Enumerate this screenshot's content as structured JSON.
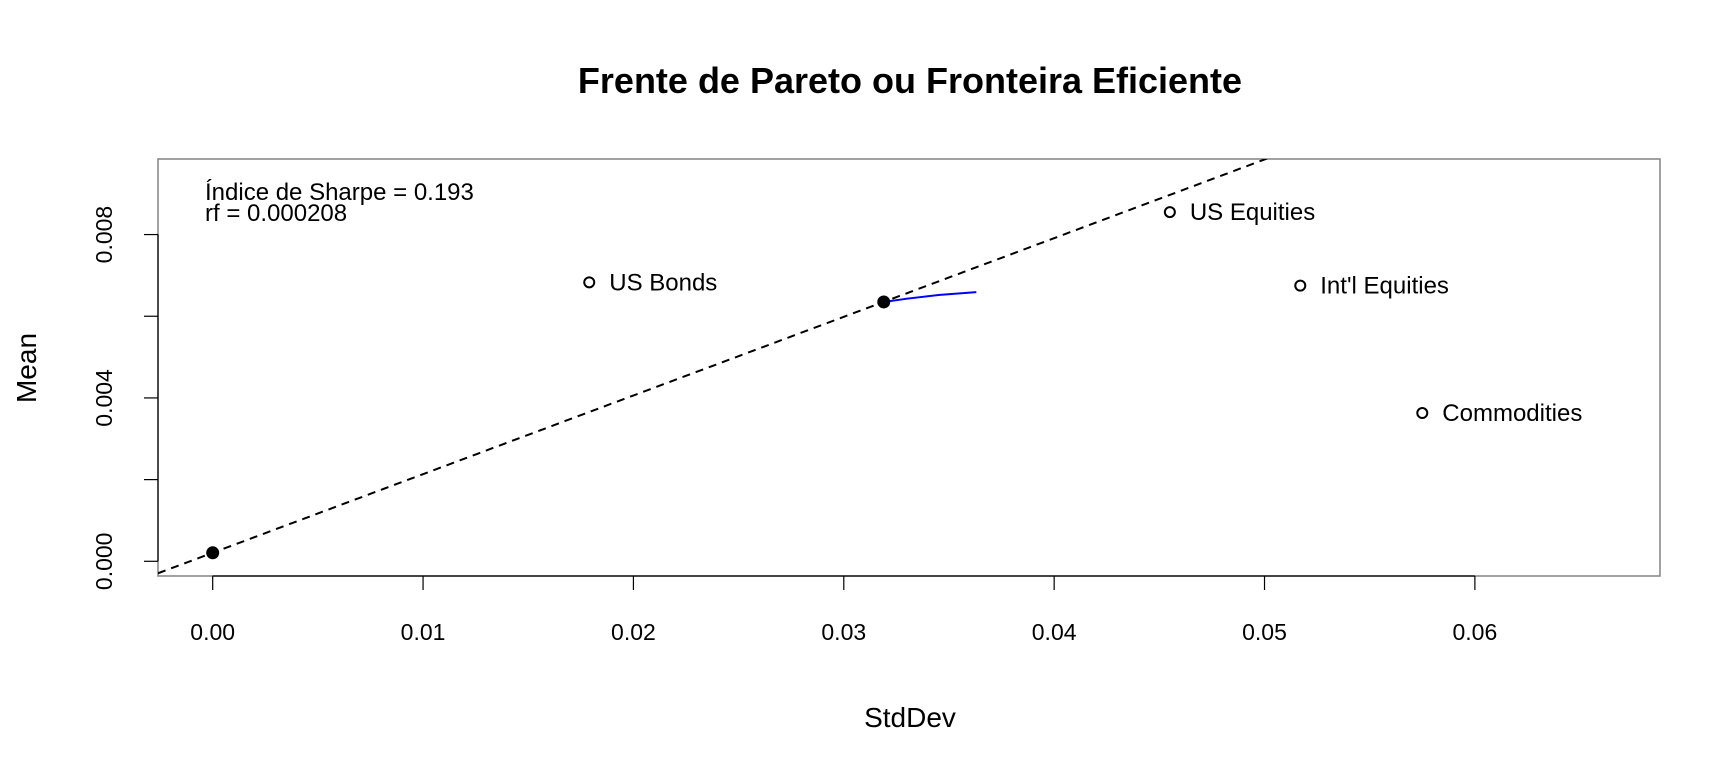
{
  "chart_data": {
    "type": "scatter",
    "title": "Frente de Pareto ou Fronteira Eficiente",
    "xlabel": "StdDev",
    "ylabel": "Mean",
    "xlim": [
      -0.0026,
      0.0688
    ],
    "ylim": [
      -0.00036,
      0.00985
    ],
    "x_ticks": [
      0.0,
      0.01,
      0.02,
      0.03,
      0.04,
      0.05,
      0.06
    ],
    "x_tick_labels": [
      "0.00",
      "0.01",
      "0.02",
      "0.03",
      "0.04",
      "0.05",
      "0.06"
    ],
    "y_ticks": [
      0.0,
      0.002,
      0.004,
      0.006,
      0.008
    ],
    "y_tick_labels": [
      "0.000",
      "",
      "0.004",
      "",
      "0.008"
    ],
    "grid": false,
    "assets": [
      {
        "label": "US Bonds",
        "x": 0.0179,
        "y": 0.00683
      },
      {
        "label": "US Equities",
        "x": 0.0455,
        "y": 0.00855
      },
      {
        "label": "Int'l Equities",
        "x": 0.0517,
        "y": 0.00675
      },
      {
        "label": "Commodities",
        "x": 0.0575,
        "y": 0.00363
      }
    ],
    "key_points": [
      {
        "x": 0.0,
        "y": 0.000208
      },
      {
        "x": 0.0319,
        "y": 0.00635
      }
    ],
    "efficient_frontier": {
      "color": "#0000ff",
      "x": [
        0.0319,
        0.033,
        0.0345,
        0.0363
      ],
      "y": [
        0.00635,
        0.00643,
        0.00652,
        0.00659
      ]
    },
    "tangent_line": {
      "style": "dashed",
      "intercept": 0.000208,
      "slope": 0.1926
    },
    "annotations": [
      "Índice de Sharpe = 0.193",
      "rf = 0.000208"
    ]
  }
}
